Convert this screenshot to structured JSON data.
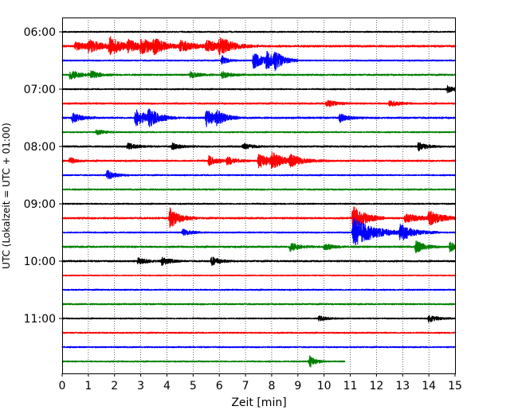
{
  "chart_data": {
    "type": "line",
    "title": "",
    "xlabel": "Zeit  [min]",
    "ylabel": "UTC (Lokalzeit = UTC + 01:00)",
    "xlim": [
      0,
      15
    ],
    "x_ticks": [
      0,
      1,
      2,
      3,
      4,
      5,
      6,
      7,
      8,
      9,
      10,
      11,
      12,
      13,
      14,
      15
    ],
    "y_ticks": [
      "06:00",
      "07:00",
      "08:00",
      "09:00",
      "10:00",
      "11:00"
    ],
    "grid": "vertical dotted",
    "trace_interval_minutes": 15,
    "trace_colors": [
      "#000000",
      "#ff0000",
      "#0000ff",
      "#008000"
    ],
    "series": [
      {
        "start": "06:00",
        "end_min": 15,
        "noise": 1.0,
        "events": []
      },
      {
        "start": "06:15",
        "end_min": 15,
        "noise": 1.4,
        "events": [
          [
            0.5,
            5,
            0.5
          ],
          [
            1,
            7,
            0.5
          ],
          [
            1.8,
            12,
            0.4
          ],
          [
            2.5,
            6,
            0.5
          ],
          [
            3.0,
            8,
            0.6
          ],
          [
            3.5,
            6,
            0.4
          ],
          [
            4.5,
            6,
            0.6
          ],
          [
            5.5,
            6,
            0.6
          ],
          [
            6.0,
            9,
            0.5
          ]
        ]
      },
      {
        "start": "06:30",
        "end_min": 15,
        "noise": 1.0,
        "events": [
          [
            6.1,
            6,
            0.2
          ],
          [
            7.3,
            10,
            0.4
          ],
          [
            7.8,
            9,
            0.4
          ],
          [
            8.1,
            8,
            0.3
          ]
        ]
      },
      {
        "start": "06:45",
        "end_min": 15,
        "noise": 1.2,
        "events": [
          [
            0.3,
            6,
            0.4
          ],
          [
            1.1,
            4,
            0.3
          ],
          [
            4.9,
            4,
            0.3
          ],
          [
            6.1,
            4,
            0.3
          ]
        ]
      },
      {
        "start": "07:00",
        "end_min": 15,
        "noise": 1.0,
        "events": [
          [
            14.7,
            4,
            0.3
          ]
        ]
      },
      {
        "start": "07:15",
        "end_min": 15,
        "noise": 1.2,
        "events": [
          [
            10.1,
            5,
            0.3
          ],
          [
            12.5,
            4,
            0.3
          ]
        ]
      },
      {
        "start": "07:30",
        "end_min": 15,
        "noise": 1.3,
        "events": [
          [
            0.4,
            6,
            0.3
          ],
          [
            2.8,
            11,
            0.4
          ],
          [
            3.3,
            9,
            0.4
          ],
          [
            5.5,
            11,
            0.4
          ],
          [
            5.9,
            6,
            0.3
          ],
          [
            10.6,
            5,
            0.3
          ]
        ]
      },
      {
        "start": "07:45",
        "end_min": 15,
        "noise": 1.0,
        "events": [
          [
            1.3,
            3,
            0.3
          ]
        ]
      },
      {
        "start": "08:00",
        "end_min": 15,
        "noise": 1.2,
        "events": [
          [
            2.5,
            4,
            0.3
          ],
          [
            4.2,
            4,
            0.3
          ],
          [
            6.9,
            4,
            0.3
          ],
          [
            13.6,
            5,
            0.3
          ]
        ]
      },
      {
        "start": "08:15",
        "end_min": 15,
        "noise": 1.2,
        "events": [
          [
            0.3,
            4,
            0.2
          ],
          [
            5.6,
            6,
            0.3
          ],
          [
            6.3,
            5,
            0.3
          ],
          [
            7.5,
            9,
            0.5
          ],
          [
            8.0,
            8,
            0.4
          ],
          [
            8.7,
            6,
            0.5
          ]
        ]
      },
      {
        "start": "08:30",
        "end_min": 15,
        "noise": 1.0,
        "events": [
          [
            1.7,
            6,
            0.3
          ]
        ]
      },
      {
        "start": "08:45",
        "end_min": 15,
        "noise": 1.1,
        "events": []
      },
      {
        "start": "09:00",
        "end_min": 15,
        "noise": 1.0,
        "events": []
      },
      {
        "start": "09:15",
        "end_min": 15,
        "noise": 1.3,
        "events": [
          [
            4.1,
            13,
            0.35
          ],
          [
            11.1,
            18,
            0.4
          ],
          [
            13.1,
            5,
            0.6
          ],
          [
            14.0,
            8,
            0.5
          ]
        ]
      },
      {
        "start": "09:30",
        "end_min": 15,
        "noise": 1.0,
        "events": [
          [
            4.6,
            4,
            0.3
          ],
          [
            11.1,
            20,
            0.7
          ],
          [
            12.9,
            10,
            0.5
          ]
        ]
      },
      {
        "start": "09:45",
        "end_min": 15,
        "noise": 1.3,
        "events": [
          [
            8.7,
            6,
            0.3
          ],
          [
            10.0,
            4,
            0.3
          ],
          [
            13.5,
            8,
            0.3
          ],
          [
            14.8,
            6,
            0.3
          ]
        ]
      },
      {
        "start": "10:00",
        "end_min": 15,
        "noise": 1.2,
        "events": [
          [
            2.9,
            4,
            0.3
          ],
          [
            3.8,
            5,
            0.3
          ],
          [
            5.7,
            5,
            0.3
          ]
        ]
      },
      {
        "start": "10:15",
        "end_min": 15,
        "noise": 0.8,
        "events": []
      },
      {
        "start": "10:30",
        "end_min": 15,
        "noise": 1.0,
        "events": []
      },
      {
        "start": "10:45",
        "end_min": 15,
        "noise": 1.1,
        "events": []
      },
      {
        "start": "11:00",
        "end_min": 15,
        "noise": 0.9,
        "events": [
          [
            9.8,
            3,
            0.3
          ],
          [
            14.0,
            5,
            0.3
          ]
        ]
      },
      {
        "start": "11:15",
        "end_min": 15,
        "noise": 1.0,
        "events": []
      },
      {
        "start": "11:30",
        "end_min": 15,
        "noise": 1.0,
        "events": []
      },
      {
        "start": "11:45",
        "end_min": 10.8,
        "noise": 1.0,
        "events": [
          [
            9.45,
            8,
            0.2
          ]
        ]
      }
    ]
  }
}
